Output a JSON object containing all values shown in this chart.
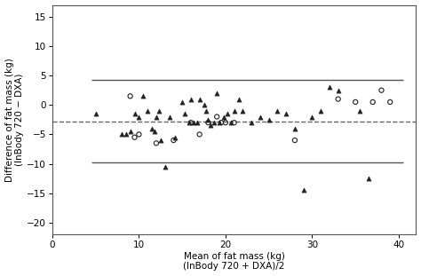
{
  "xlabel": "Mean of fat mass (kg)\n(InBody 720 + DXA)/2",
  "ylabel": "Difference of fat mass (kg)\n(InBody 720 − DXA)",
  "xlim": [
    0,
    42
  ],
  "ylim": [
    -22,
    17
  ],
  "xticks": [
    0,
    10,
    20,
    30,
    40
  ],
  "yticks": [
    -20,
    -15,
    -10,
    -5,
    0,
    5,
    10,
    15
  ],
  "upper_loa": 4.2,
  "lower_loa": -9.8,
  "bias": -2.8,
  "line_xmin": 4.5,
  "line_xmax": 40.5,
  "bias_xmin": 0,
  "bias_xmax": 42,
  "triangles_x": [
    5.0,
    8.0,
    8.5,
    9.0,
    9.5,
    10.0,
    10.5,
    11.0,
    11.5,
    11.8,
    12.0,
    12.3,
    12.5,
    13.0,
    13.5,
    14.2,
    15.0,
    15.3,
    15.8,
    16.0,
    16.3,
    16.7,
    17.0,
    17.5,
    17.8,
    18.0,
    18.3,
    18.7,
    19.0,
    19.3,
    19.8,
    20.2,
    20.6,
    21.0,
    21.5,
    22.0,
    23.0,
    24.0,
    25.0,
    26.0,
    27.0,
    28.0,
    29.0,
    30.0,
    31.0,
    32.0,
    33.0,
    35.5,
    36.5
  ],
  "triangles_y": [
    -1.5,
    -5.0,
    -5.0,
    -4.5,
    -1.5,
    -2.0,
    1.5,
    -1.0,
    -4.0,
    -4.5,
    -2.0,
    -1.0,
    -6.0,
    -10.5,
    -2.0,
    -5.5,
    0.5,
    -1.5,
    -3.0,
    1.0,
    -3.0,
    -3.0,
    1.0,
    0.0,
    -1.0,
    -2.5,
    -3.5,
    -3.0,
    2.0,
    -3.0,
    -2.0,
    -1.5,
    -3.0,
    -1.0,
    1.0,
    -1.0,
    -3.0,
    -2.0,
    -2.5,
    -1.0,
    -1.5,
    -4.0,
    -14.5,
    -2.0,
    -1.0,
    3.0,
    2.5,
    -1.0,
    -12.5
  ],
  "circles_x": [
    9.0,
    9.5,
    10.0,
    12.0,
    14.0,
    16.0,
    17.0,
    18.0,
    19.0,
    19.5,
    20.0,
    21.0,
    28.0,
    33.0,
    35.0,
    37.0,
    38.0,
    39.0
  ],
  "circles_y": [
    1.5,
    -5.5,
    -5.0,
    -6.5,
    -6.0,
    -3.0,
    -5.0,
    -3.0,
    -2.0,
    -3.0,
    -3.0,
    -3.0,
    -6.0,
    1.0,
    0.5,
    0.5,
    2.5,
    0.5
  ],
  "line_color": "#555555",
  "dashed_color": "#666666",
  "marker_color": "#222222",
  "bg_color": "#ffffff"
}
